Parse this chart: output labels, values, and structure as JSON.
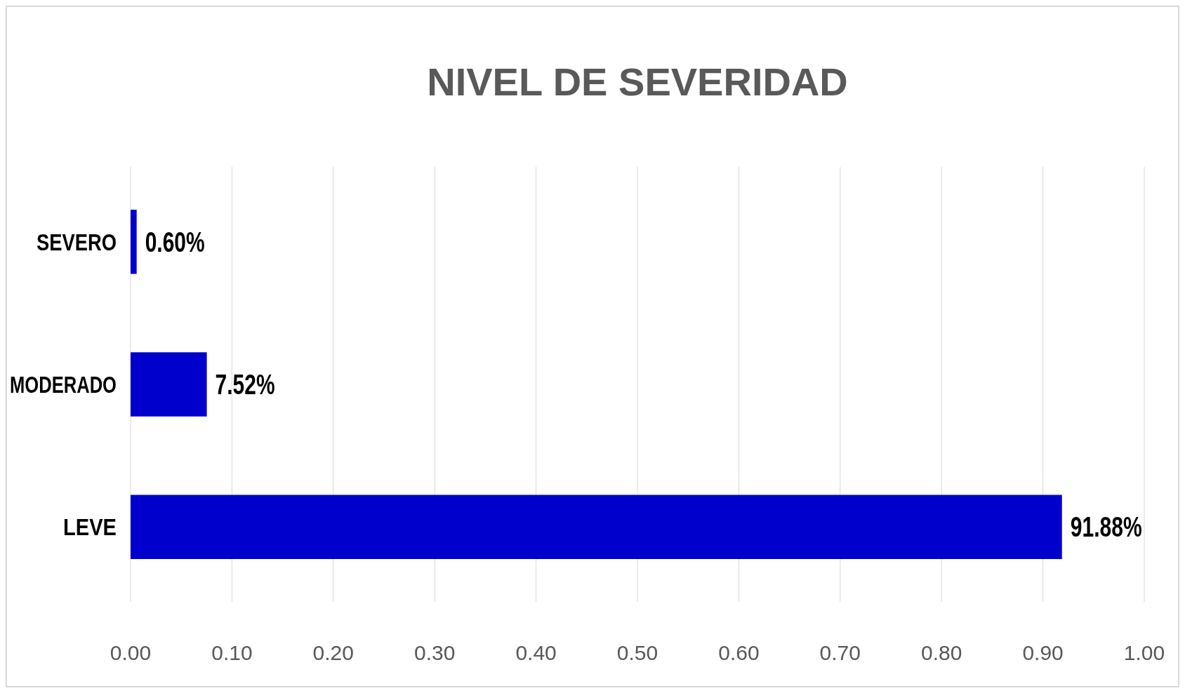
{
  "chart_data": {
    "type": "bar",
    "orientation": "horizontal",
    "title": "NIVEL DE SEVERIDAD",
    "categories": [
      "SEVERO",
      "MODERADO",
      "LEVE"
    ],
    "values": [
      0.006,
      0.0752,
      0.9188
    ],
    "value_labels": [
      "0.60%",
      "7.52%",
      "91.88%"
    ],
    "color": "#0000cc",
    "xlim": [
      0,
      1
    ],
    "xticks": [
      {
        "value": 0,
        "label": "0.00"
      },
      {
        "value": 0.1,
        "label": "0.10"
      },
      {
        "value": 0.2,
        "label": "0.20"
      },
      {
        "value": 0.3,
        "label": "0.30"
      },
      {
        "value": 0.4,
        "label": "0.40"
      },
      {
        "value": 0.5,
        "label": "0.50"
      },
      {
        "value": 0.6,
        "label": "0.60"
      },
      {
        "value": 0.7,
        "label": "0.70"
      },
      {
        "value": 0.8,
        "label": "0.80"
      },
      {
        "value": 0.9,
        "label": "0.90"
      },
      {
        "value": 1,
        "label": "1.00"
      }
    ],
    "grid": "x"
  }
}
